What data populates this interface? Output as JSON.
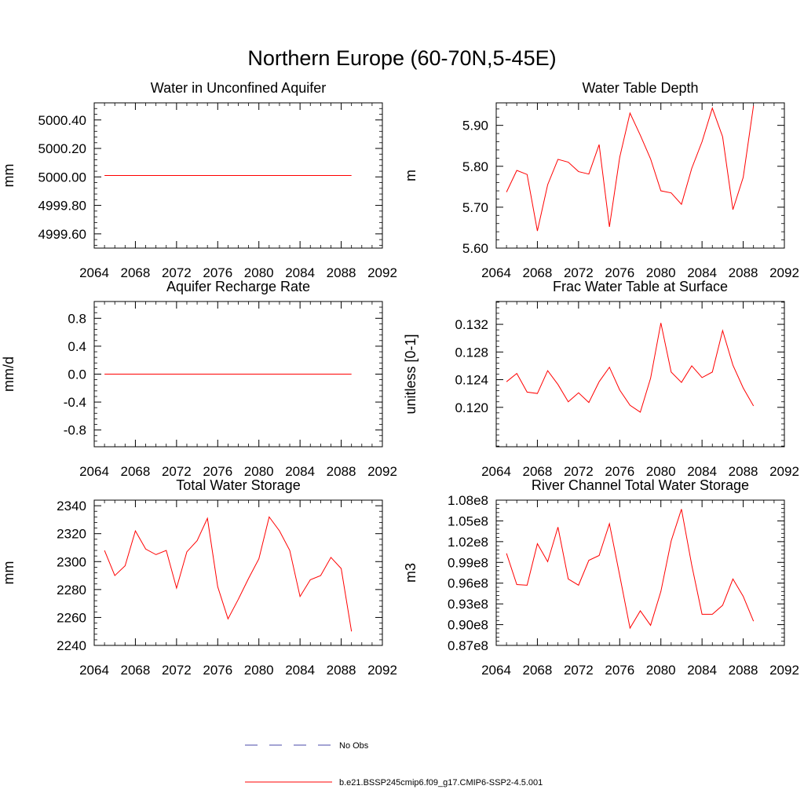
{
  "figure": {
    "title": "Northern Europe (60-70N,5-45E)"
  },
  "legend": {
    "entries": [
      {
        "label": "No Obs",
        "color": "#4a4aa8",
        "style": "dashed"
      },
      {
        "label": "b.e21.BSSP245cmip6.f09_g17.CMIP6-SSP2-4.5.001",
        "color": "#ff0000",
        "style": "solid"
      }
    ]
  },
  "chart_data": [
    {
      "type": "line",
      "title": "Water in Unconfined Aquifer",
      "ylabel": "mm",
      "xlim": [
        2064,
        2092
      ],
      "xticks": [
        2064,
        2068,
        2072,
        2076,
        2080,
        2084,
        2088,
        2092
      ],
      "xtick_labels": [
        "2064",
        "2068",
        "2072",
        "2076",
        "2080",
        "2084",
        "2088",
        "2092"
      ],
      "ylim": [
        4999.5,
        5000.52
      ],
      "yticks": [
        4999.6,
        4999.8,
        5000.0,
        5000.2,
        5000.4
      ],
      "ytick_labels": [
        "4999.60",
        "4999.80",
        "5000.00",
        "5000.20",
        "5000.40"
      ],
      "series": [
        {
          "color": "#ff0000",
          "x": [
            2065,
            2066,
            2067,
            2068,
            2069,
            2070,
            2071,
            2072,
            2073,
            2074,
            2075,
            2076,
            2077,
            2078,
            2079,
            2080,
            2081,
            2082,
            2083,
            2084,
            2085,
            2086,
            2087,
            2088,
            2089
          ],
          "y": [
            5000.01,
            5000.01,
            5000.01,
            5000.01,
            5000.01,
            5000.01,
            5000.01,
            5000.01,
            5000.01,
            5000.01,
            5000.01,
            5000.01,
            5000.01,
            5000.01,
            5000.01,
            5000.01,
            5000.01,
            5000.01,
            5000.01,
            5000.01,
            5000.01,
            5000.01,
            5000.01,
            5000.01,
            5000.01
          ]
        }
      ]
    },
    {
      "type": "line",
      "title": "Water Table Depth",
      "ylabel": "m",
      "xlim": [
        2064,
        2092
      ],
      "xticks": [
        2064,
        2068,
        2072,
        2076,
        2080,
        2084,
        2088,
        2092
      ],
      "xtick_labels": [
        "2064",
        "2068",
        "2072",
        "2076",
        "2080",
        "2084",
        "2088",
        "2092"
      ],
      "ylim": [
        5.6,
        5.955
      ],
      "yticks": [
        5.6,
        5.7,
        5.8,
        5.9
      ],
      "ytick_labels": [
        "5.60",
        "5.70",
        "5.80",
        "5.90"
      ],
      "series": [
        {
          "color": "#ff0000",
          "x": [
            2065,
            2066,
            2067,
            2068,
            2069,
            2070,
            2071,
            2072,
            2073,
            2074,
            2075,
            2076,
            2077,
            2078,
            2079,
            2080,
            2081,
            2082,
            2083,
            2084,
            2085,
            2086,
            2087,
            2088,
            2089
          ],
          "y": [
            5.737,
            5.79,
            5.78,
            5.642,
            5.755,
            5.817,
            5.81,
            5.787,
            5.781,
            5.853,
            5.652,
            5.822,
            5.93,
            5.876,
            5.818,
            5.74,
            5.735,
            5.707,
            5.795,
            5.86,
            5.942,
            5.872,
            5.694,
            5.773,
            5.948
          ]
        }
      ]
    },
    {
      "type": "line",
      "title": "Aquifer Recharge Rate",
      "ylabel": "mm/d",
      "xlim": [
        2064,
        2092
      ],
      "xticks": [
        2064,
        2068,
        2072,
        2076,
        2080,
        2084,
        2088,
        2092
      ],
      "xtick_labels": [
        "2064",
        "2068",
        "2072",
        "2076",
        "2080",
        "2084",
        "2088",
        "2092"
      ],
      "ylim": [
        -1.04,
        1.04
      ],
      "yticks": [
        -0.8,
        -0.4,
        0.0,
        0.4,
        0.8
      ],
      "ytick_labels": [
        "-0.8",
        "-0.4",
        "0.0",
        "0.4",
        "0.8"
      ],
      "series": [
        {
          "color": "#ff0000",
          "x": [
            2065,
            2066,
            2067,
            2068,
            2069,
            2070,
            2071,
            2072,
            2073,
            2074,
            2075,
            2076,
            2077,
            2078,
            2079,
            2080,
            2081,
            2082,
            2083,
            2084,
            2085,
            2086,
            2087,
            2088,
            2089
          ],
          "y": [
            0,
            0,
            0,
            0,
            0,
            0,
            0,
            0,
            0,
            0,
            0,
            0,
            0,
            0,
            0,
            0,
            0,
            0,
            0,
            0,
            0,
            0,
            0,
            0,
            0
          ]
        }
      ]
    },
    {
      "type": "line",
      "title": "Frac Water Table at Surface",
      "ylabel": "unitless [0-1]",
      "xlim": [
        2064,
        2092
      ],
      "xticks": [
        2064,
        2068,
        2072,
        2076,
        2080,
        2084,
        2088,
        2092
      ],
      "xtick_labels": [
        "2064",
        "2068",
        "2072",
        "2076",
        "2080",
        "2084",
        "2088",
        "2092"
      ],
      "ylim": [
        0.1143,
        0.1353
      ],
      "yticks": [
        0.12,
        0.124,
        0.128,
        0.132
      ],
      "ytick_labels": [
        "0.120",
        "0.124",
        "0.128",
        "0.132"
      ],
      "series": [
        {
          "color": "#ff0000",
          "x": [
            2065,
            2066,
            2067,
            2068,
            2069,
            2070,
            2071,
            2072,
            2073,
            2074,
            2075,
            2076,
            2077,
            2078,
            2079,
            2080,
            2081,
            2082,
            2083,
            2084,
            2085,
            2086,
            2087,
            2088,
            2089
          ],
          "y": [
            0.1237,
            0.1249,
            0.1222,
            0.122,
            0.1253,
            0.1233,
            0.1208,
            0.1221,
            0.1207,
            0.1237,
            0.1258,
            0.1225,
            0.1203,
            0.1193,
            0.1242,
            0.1322,
            0.1251,
            0.1236,
            0.126,
            0.1243,
            0.1251,
            0.1311,
            0.1261,
            0.1228,
            0.1202
          ]
        }
      ]
    },
    {
      "type": "line",
      "title": "Total Water Storage",
      "ylabel": "mm",
      "xlim": [
        2064,
        2092
      ],
      "xticks": [
        2064,
        2068,
        2072,
        2076,
        2080,
        2084,
        2088,
        2092
      ],
      "xtick_labels": [
        "2064",
        "2068",
        "2072",
        "2076",
        "2080",
        "2084",
        "2088",
        "2092"
      ],
      "ylim": [
        2240,
        2344
      ],
      "yticks": [
        2240,
        2260,
        2280,
        2300,
        2320,
        2340
      ],
      "ytick_labels": [
        "2240",
        "2260",
        "2280",
        "2300",
        "2320",
        "2340"
      ],
      "series": [
        {
          "color": "#ff0000",
          "x": [
            2065,
            2066,
            2067,
            2068,
            2069,
            2070,
            2071,
            2072,
            2073,
            2074,
            2075,
            2076,
            2077,
            2078,
            2079,
            2080,
            2081,
            2082,
            2083,
            2084,
            2085,
            2086,
            2087,
            2088,
            2089
          ],
          "y": [
            2308,
            2290,
            2297,
            2322,
            2309,
            2305,
            2308,
            2281,
            2307,
            2315,
            2331,
            2282,
            2259,
            2273,
            2288,
            2302,
            2332,
            2322,
            2308,
            2275,
            2287,
            2290,
            2303,
            2295,
            2250
          ]
        }
      ]
    },
    {
      "type": "line",
      "title": "River Channel Total Water Storage",
      "ylabel": "m3",
      "xlim": [
        2064,
        2092
      ],
      "xticks": [
        2064,
        2068,
        2072,
        2076,
        2080,
        2084,
        2088,
        2092
      ],
      "xtick_labels": [
        "2064",
        "2068",
        "2072",
        "2076",
        "2080",
        "2084",
        "2088",
        "2092"
      ],
      "ylim": [
        87000000,
        108000000
      ],
      "yticks": [
        87000000,
        90000000,
        93000000,
        96000000,
        99000000,
        102000000,
        105000000,
        108000000
      ],
      "ytick_labels": [
        "0.87e8",
        "0.90e8",
        "0.93e8",
        "0.96e8",
        "0.99e8",
        "1.02e8",
        "1.05e8",
        "1.08e8"
      ],
      "series": [
        {
          "color": "#ff0000",
          "x": [
            2065,
            2066,
            2067,
            2068,
            2069,
            2070,
            2071,
            2072,
            2073,
            2074,
            2075,
            2076,
            2077,
            2078,
            2079,
            2080,
            2081,
            2082,
            2083,
            2084,
            2085,
            2086,
            2087,
            2088,
            2089
          ],
          "y": [
            100300000,
            95800000,
            95700000,
            101700000,
            99100000,
            104100000,
            96600000,
            95700000,
            99300000,
            100000000,
            104600000,
            97100000,
            89500000,
            92000000,
            89900000,
            94800000,
            102100000,
            106700000,
            98600000,
            91500000,
            91500000,
            92800000,
            96600000,
            94100000,
            90500000
          ]
        }
      ]
    }
  ]
}
